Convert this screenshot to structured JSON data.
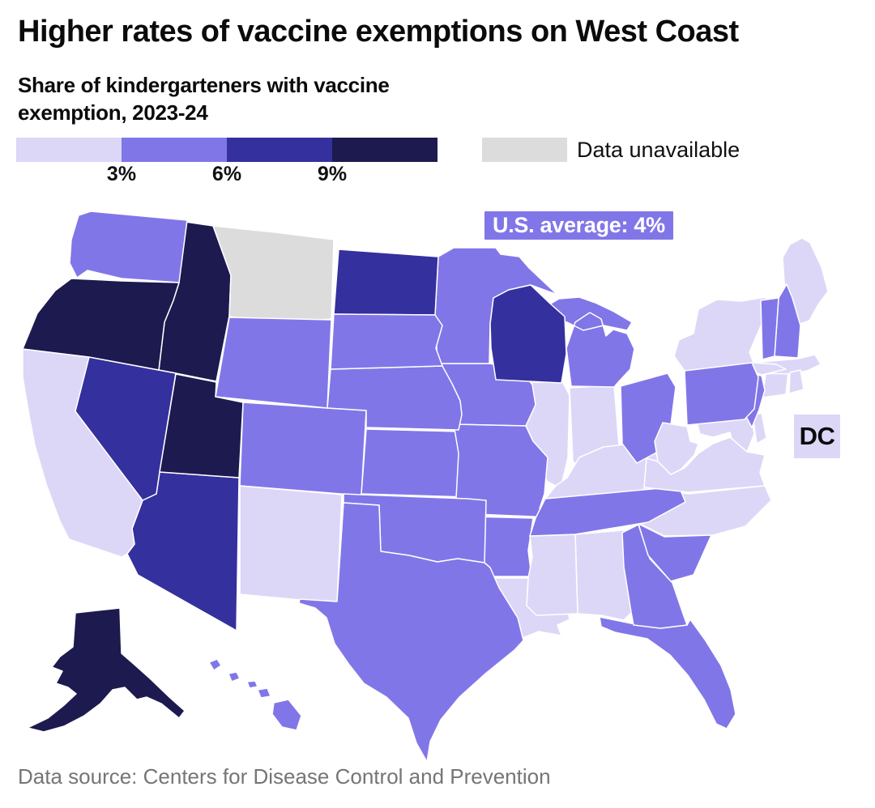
{
  "header": {
    "title": "Higher rates of vaccine exemptions on West Coast",
    "subtitle_line1": "Share of kindergarteners with vaccine",
    "subtitle_line2": "exemption, 2023-24"
  },
  "legend": {
    "ticks": [
      "3%",
      "6%",
      "9%"
    ],
    "unavailable_label": "Data unavailable",
    "unavailable_color": "#dcdcdc",
    "categories": [
      {
        "id": "0-3%",
        "color": "#dcd7f7"
      },
      {
        "id": "3-6%",
        "color": "#8176e8"
      },
      {
        "id": "6-9%",
        "color": "#34309d"
      },
      {
        "id": "9%+",
        "color": "#1c1a4e"
      }
    ]
  },
  "annotations": {
    "us_average": "U.S. average: 4%",
    "us_average_bg": "#8176e8",
    "dc_label": "DC"
  },
  "footer": {
    "source": "Data source: Centers for Disease Control and Prevention"
  },
  "chart_data": {
    "type": "choropleth",
    "title": "Higher rates of vaccine exemptions on West Coast",
    "subtitle": "Share of kindergarteners with vaccine exemption, 2023-24",
    "unit": "percent of kindergarteners with vaccine exemption",
    "legend_breaks": [
      "3%",
      "6%",
      "9%"
    ],
    "us_average": "4%",
    "colors": {
      "0-3%": "#dcd7f7",
      "3-6%": "#8176e8",
      "6-9%": "#34309d",
      "9%+": "#1c1a4e",
      "unavailable": "#dcdcdc"
    },
    "states": [
      {
        "abbr": "AL",
        "name": "Alabama",
        "category": "0-3%"
      },
      {
        "abbr": "AK",
        "name": "Alaska",
        "category": "9%+"
      },
      {
        "abbr": "AZ",
        "name": "Arizona",
        "category": "6-9%"
      },
      {
        "abbr": "AR",
        "name": "Arkansas",
        "category": "3-6%"
      },
      {
        "abbr": "CA",
        "name": "California",
        "category": "0-3%"
      },
      {
        "abbr": "CO",
        "name": "Colorado",
        "category": "3-6%"
      },
      {
        "abbr": "CT",
        "name": "Connecticut",
        "category": "0-3%"
      },
      {
        "abbr": "DE",
        "name": "Delaware",
        "category": "0-3%"
      },
      {
        "abbr": "DC",
        "name": "District of Columbia",
        "category": "0-3%"
      },
      {
        "abbr": "FL",
        "name": "Florida",
        "category": "3-6%"
      },
      {
        "abbr": "GA",
        "name": "Georgia",
        "category": "3-6%"
      },
      {
        "abbr": "HI",
        "name": "Hawaii",
        "category": "3-6%"
      },
      {
        "abbr": "ID",
        "name": "Idaho",
        "category": "9%+"
      },
      {
        "abbr": "IL",
        "name": "Illinois",
        "category": "0-3%"
      },
      {
        "abbr": "IN",
        "name": "Indiana",
        "category": "0-3%"
      },
      {
        "abbr": "IA",
        "name": "Iowa",
        "category": "3-6%"
      },
      {
        "abbr": "KS",
        "name": "Kansas",
        "category": "3-6%"
      },
      {
        "abbr": "KY",
        "name": "Kentucky",
        "category": "0-3%"
      },
      {
        "abbr": "LA",
        "name": "Louisiana",
        "category": "0-3%"
      },
      {
        "abbr": "ME",
        "name": "Maine",
        "category": "0-3%"
      },
      {
        "abbr": "MD",
        "name": "Maryland",
        "category": "0-3%"
      },
      {
        "abbr": "MA",
        "name": "Massachusetts",
        "category": "0-3%"
      },
      {
        "abbr": "MI",
        "name": "Michigan",
        "category": "3-6%"
      },
      {
        "abbr": "MN",
        "name": "Minnesota",
        "category": "3-6%"
      },
      {
        "abbr": "MS",
        "name": "Mississippi",
        "category": "0-3%"
      },
      {
        "abbr": "MO",
        "name": "Missouri",
        "category": "3-6%"
      },
      {
        "abbr": "MT",
        "name": "Montana",
        "category": "unavailable"
      },
      {
        "abbr": "NE",
        "name": "Nebraska",
        "category": "3-6%"
      },
      {
        "abbr": "NV",
        "name": "Nevada",
        "category": "6-9%"
      },
      {
        "abbr": "NH",
        "name": "New Hampshire",
        "category": "3-6%"
      },
      {
        "abbr": "NJ",
        "name": "New Jersey",
        "category": "3-6%"
      },
      {
        "abbr": "NM",
        "name": "New Mexico",
        "category": "0-3%"
      },
      {
        "abbr": "NY",
        "name": "New York",
        "category": "0-3%"
      },
      {
        "abbr": "NC",
        "name": "North Carolina",
        "category": "0-3%"
      },
      {
        "abbr": "ND",
        "name": "North Dakota",
        "category": "6-9%"
      },
      {
        "abbr": "OH",
        "name": "Ohio",
        "category": "3-6%"
      },
      {
        "abbr": "OK",
        "name": "Oklahoma",
        "category": "3-6%"
      },
      {
        "abbr": "OR",
        "name": "Oregon",
        "category": "9%+"
      },
      {
        "abbr": "PA",
        "name": "Pennsylvania",
        "category": "3-6%"
      },
      {
        "abbr": "RI",
        "name": "Rhode Island",
        "category": "0-3%"
      },
      {
        "abbr": "SC",
        "name": "South Carolina",
        "category": "3-6%"
      },
      {
        "abbr": "SD",
        "name": "South Dakota",
        "category": "3-6%"
      },
      {
        "abbr": "TN",
        "name": "Tennessee",
        "category": "3-6%"
      },
      {
        "abbr": "TX",
        "name": "Texas",
        "category": "3-6%"
      },
      {
        "abbr": "UT",
        "name": "Utah",
        "category": "9%+"
      },
      {
        "abbr": "VT",
        "name": "Vermont",
        "category": "3-6%"
      },
      {
        "abbr": "VA",
        "name": "Virginia",
        "category": "0-3%"
      },
      {
        "abbr": "WA",
        "name": "Washington",
        "category": "3-6%"
      },
      {
        "abbr": "WV",
        "name": "West Virginia",
        "category": "0-3%"
      },
      {
        "abbr": "WI",
        "name": "Wisconsin",
        "category": "6-9%"
      },
      {
        "abbr": "WY",
        "name": "Wyoming",
        "category": "3-6%"
      }
    ]
  }
}
